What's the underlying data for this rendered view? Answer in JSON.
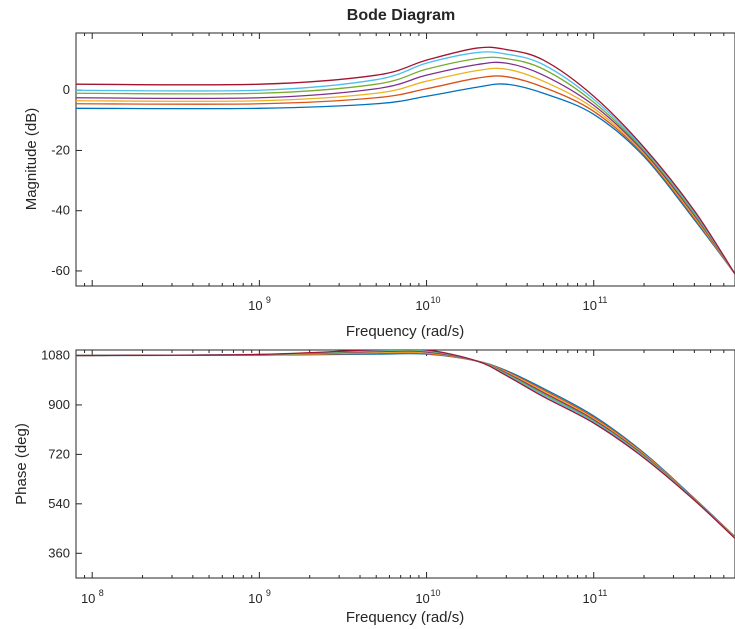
{
  "chart_data": {
    "title": "Bode Diagram",
    "xscale": "log",
    "xlim": [
      80000000,
      700000000000
    ],
    "xlabel": "Frequency  (rad/s)",
    "x_tick_labels": [
      {
        "base": "10",
        "exp": "8",
        "value": 100000000
      },
      {
        "base": "10",
        "exp": "9",
        "value": 1000000000
      },
      {
        "base": "10",
        "exp": "10",
        "value": 10000000000
      },
      {
        "base": "10",
        "exp": "11",
        "value": 100000000000
      }
    ],
    "panels": [
      {
        "type": "line",
        "ylabel": "Magnitude (dB)",
        "ylim": [
          -65,
          19
        ],
        "y_ticks": [
          0,
          -20,
          -40,
          -60
        ],
        "y_tick_labels": [
          "0",
          "-20",
          "-40",
          "-60"
        ],
        "x_tick_labels_shown": [
          {
            "base": "10",
            "exp": "9"
          },
          {
            "base": "10",
            "exp": "10"
          },
          {
            "base": "10",
            "exp": "11"
          }
        ],
        "series": [
          {
            "color": "#0072BD",
            "x": [
              80000000,
              1000000000,
              5000000000,
              10000000000,
              20000000000,
              30000000000,
              50000000000,
              100000000000,
              200000000000,
              400000000000,
              700000000000
            ],
            "y": [
              -6,
              -6,
              -4.5,
              -2,
              1,
              2,
              -1,
              -8,
              -22,
              -43,
              -61
            ]
          },
          {
            "color": "#D95319",
            "x": [
              80000000,
              1000000000,
              5000000000,
              10000000000,
              20000000000,
              30000000000,
              50000000000,
              100000000000,
              200000000000,
              400000000000,
              700000000000
            ],
            "y": [
              -4.5,
              -4.5,
              -2.5,
              0.5,
              4,
              4.5,
              1,
              -7,
              -21.5,
              -42.5,
              -61
            ]
          },
          {
            "color": "#EDB120",
            "x": [
              80000000,
              1000000000,
              5000000000,
              10000000000,
              20000000000,
              30000000000,
              50000000000,
              100000000000,
              200000000000,
              400000000000,
              700000000000
            ],
            "y": [
              -3.5,
              -3.5,
              -1,
              3,
              6.5,
              7,
              3,
              -6,
              -21,
              -42,
              -61
            ]
          },
          {
            "color": "#7E2F8E",
            "x": [
              80000000,
              1000000000,
              5000000000,
              10000000000,
              20000000000,
              30000000000,
              50000000000,
              100000000000,
              200000000000,
              400000000000,
              700000000000
            ],
            "y": [
              -2.5,
              -2.5,
              0.5,
              5,
              8.5,
              9,
              5,
              -5,
              -20.5,
              -41.5,
              -61
            ]
          },
          {
            "color": "#77AC30",
            "x": [
              80000000,
              1000000000,
              5000000000,
              10000000000,
              20000000000,
              30000000000,
              50000000000,
              100000000000,
              200000000000,
              400000000000,
              700000000000
            ],
            "y": [
              -1,
              -1,
              2,
              7,
              10.5,
              10.5,
              7,
              -4,
              -20,
              -41,
              -61
            ]
          },
          {
            "color": "#4DBEEE",
            "x": [
              80000000,
              1000000000,
              5000000000,
              10000000000,
              20000000000,
              30000000000,
              50000000000,
              100000000000,
              200000000000,
              400000000000,
              700000000000
            ],
            "y": [
              0,
              0,
              3.5,
              9,
              12.5,
              12,
              8.5,
              -3,
              -19.5,
              -40.5,
              -61
            ]
          },
          {
            "color": "#A2142F",
            "x": [
              80000000,
              1000000000,
              5000000000,
              10000000000,
              20000000000,
              30000000000,
              50000000000,
              100000000000,
              200000000000,
              400000000000,
              700000000000
            ],
            "y": [
              2,
              2,
              5,
              10,
              14,
              13.5,
              10,
              -2,
              -19,
              -40,
              -61
            ]
          }
        ]
      },
      {
        "type": "line",
        "ylabel": "Phase (deg)",
        "ylim": [
          270,
          1100
        ],
        "y_ticks": [
          1080,
          900,
          720,
          540,
          360
        ],
        "y_tick_labels": [
          "1080",
          "900",
          "720",
          "540",
          "360"
        ],
        "x_tick_labels_shown": [
          {
            "base": "10",
            "exp": "8"
          },
          {
            "base": "10",
            "exp": "9"
          },
          {
            "base": "10",
            "exp": "10"
          },
          {
            "base": "10",
            "exp": "11"
          }
        ],
        "series": [
          {
            "color": "#0072BD",
            "x": [
              80000000,
              1000000000,
              5000000000,
              10000000000,
              20000000000,
              30000000000,
              50000000000,
              100000000000,
              200000000000,
              400000000000,
              700000000000
            ],
            "y": [
              1080,
              1081,
              1085,
              1085,
              1060,
              1025,
              960,
              860,
              725,
              560,
              420
            ]
          },
          {
            "color": "#D95319",
            "x": [
              80000000,
              1000000000,
              5000000000,
              10000000000,
              20000000000,
              30000000000,
              50000000000,
              100000000000,
              200000000000,
              400000000000,
              700000000000
            ],
            "y": [
              1080,
              1082,
              1088,
              1087,
              1060,
              1022,
              955,
              855,
              722,
              558,
              419
            ]
          },
          {
            "color": "#EDB120",
            "x": [
              80000000,
              1000000000,
              5000000000,
              10000000000,
              20000000000,
              30000000000,
              50000000000,
              100000000000,
              200000000000,
              400000000000,
              700000000000
            ],
            "y": [
              1080,
              1082,
              1091,
              1090,
              1060,
              1019,
              950,
              850,
              719,
              557,
              418
            ]
          },
          {
            "color": "#7E2F8E",
            "x": [
              80000000,
              1000000000,
              5000000000,
              10000000000,
              20000000000,
              30000000000,
              50000000000,
              100000000000,
              200000000000,
              400000000000,
              700000000000
            ],
            "y": [
              1080,
              1083,
              1094,
              1093,
              1060,
              1016,
              945,
              846,
              716,
              556,
              417
            ]
          },
          {
            "color": "#77AC30",
            "x": [
              80000000,
              1000000000,
              5000000000,
              10000000000,
              20000000000,
              30000000000,
              50000000000,
              100000000000,
              200000000000,
              400000000000,
              700000000000
            ],
            "y": [
              1080,
              1083,
              1097,
              1096,
              1060,
              1013,
              940,
              842,
              713,
              555,
              416
            ]
          },
          {
            "color": "#4DBEEE",
            "x": [
              80000000,
              1000000000,
              5000000000,
              10000000000,
              20000000000,
              30000000000,
              50000000000,
              100000000000,
              200000000000,
              400000000000,
              700000000000
            ],
            "y": [
              1080,
              1084,
              1099,
              1098,
              1060,
              1010,
              935,
              838,
              710,
              554,
              415
            ]
          },
          {
            "color": "#A2142F",
            "x": [
              80000000,
              1000000000,
              5000000000,
              10000000000,
              20000000000,
              30000000000,
              50000000000,
              100000000000,
              200000000000,
              400000000000,
              700000000000
            ],
            "y": [
              1080,
              1084,
              1101,
              1100,
              1060,
              1007,
              930,
              834,
              707,
              553,
              414
            ]
          }
        ]
      }
    ]
  }
}
